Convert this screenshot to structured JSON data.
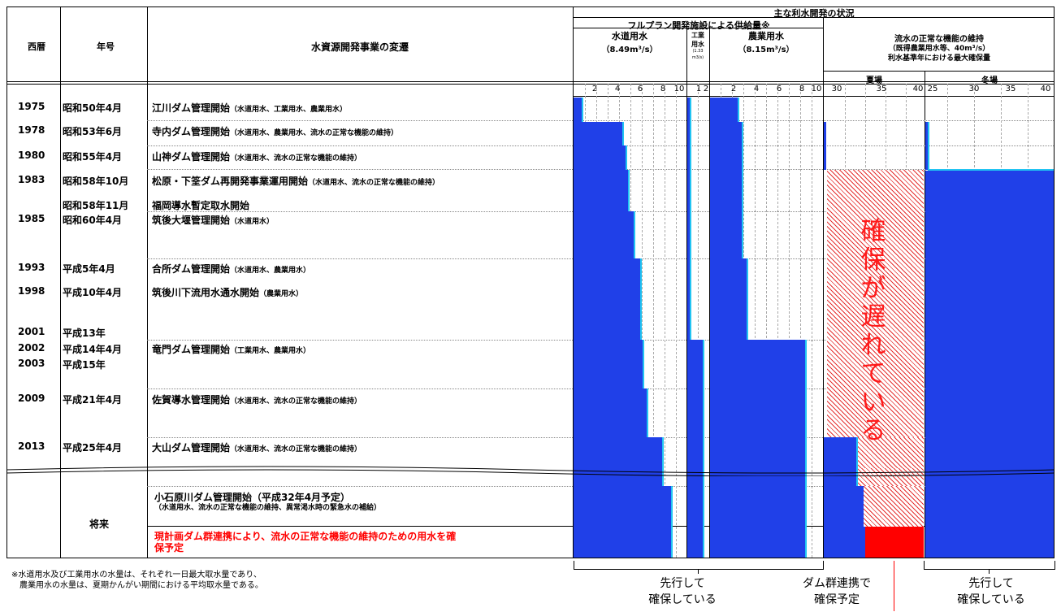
{
  "header": {
    "col_year": "西暦",
    "col_era": "年号",
    "col_history": "水資源開発事業の変遷",
    "main_title": "主な利水開発の状況",
    "fullplan_title": "フルプラン開発施設による供給量※",
    "water_supply": "水道用水",
    "water_supply_amount": "（8.49m³/s）",
    "industrial_1": "工業",
    "industrial_2": "用水",
    "industrial_amount_1": "(1.33",
    "industrial_amount_2": "m3/s)",
    "agri": "農業用水",
    "agri_amount": "（8.15m³/s）",
    "normal_flow_1": "流水の正常な機能の維持",
    "normal_flow_2": "（既得農業用水等、40m³/s）",
    "normal_flow_3": "利水基準年における最大確保量",
    "summer": "夏場",
    "winter": "冬場"
  },
  "ticks": {
    "water_supply": [
      "2",
      "4",
      "6",
      "8",
      "10"
    ],
    "industrial": [
      "1",
      "2"
    ],
    "agri": [
      "2",
      "4",
      "6",
      "8",
      "10"
    ],
    "summer": [
      "30",
      "35",
      "40"
    ],
    "winter": [
      "25",
      "30",
      "35",
      "40"
    ]
  },
  "rows": [
    {
      "year": "1975",
      "era": "昭和50年4月",
      "event": "江川ダム管理開始",
      "note": "（水道用水、工業用水、農業用水）"
    },
    {
      "year": "1978",
      "era": "昭和53年6月",
      "event": "寺内ダム管理開始",
      "note": "（水道用水、農業用水、流水の正常な機能の維持）"
    },
    {
      "year": "1980",
      "era": "昭和55年4月",
      "event": "山神ダム管理開始",
      "note": "（水道用水、流水の正常な機能の維持）"
    },
    {
      "year": "1983",
      "era": "昭和58年10月",
      "event": "松原・下筌ダム再開発事業運用開始",
      "note": "（水道用水、流水の正常な機能の維持）"
    },
    {
      "year": "",
      "era": "昭和58年11月",
      "event": "福岡導水暫定取水開始",
      "note": ""
    },
    {
      "year": "1985",
      "era": "昭和60年4月",
      "event": "筑後大堰管理開始",
      "note": "（水道用水）"
    },
    {
      "year": "1993",
      "era": "平成5年4月",
      "event": "合所ダム管理開始",
      "note": "（水道用水、農業用水）"
    },
    {
      "year": "1998",
      "era": "平成10年4月",
      "event": "筑後川下流用水通水開始",
      "note": "（農業用水）"
    },
    {
      "year": "2001",
      "era": "平成13年",
      "event": "",
      "note": ""
    },
    {
      "year": "2002",
      "era": "平成14年4月",
      "event": "竜門ダム管理開始",
      "note": "（工業用水、農業用水）"
    },
    {
      "year": "2003",
      "era": "平成15年",
      "event": "",
      "note": ""
    },
    {
      "year": "2009",
      "era": "平成21年4月",
      "event": "佐賀導水管理開始",
      "note": "（水道用水、流水の正常な機能の維持）"
    },
    {
      "year": "2013",
      "era": "平成25年4月",
      "event": "大山ダム管理開始",
      "note": "（水道用水、流水の正常な機能の維持）"
    }
  ],
  "future": {
    "era": "将来",
    "event1": "小石原川ダム管理開始（平成32年4月予定）",
    "event1_note": "（水道用水、流水の正常な機能の維持、異常渇水時の緊急水の補給）",
    "event2_line1": "現計画ダム群連携により、流水の正常な機能の維持のための用水を確",
    "event2_line2": "保予定"
  },
  "delay_text": [
    "確",
    "保",
    "が",
    "遅",
    "れ",
    "て",
    "い",
    "る"
  ],
  "footnote": [
    "※水道用水及び工業用水の水量は、それぞれ一日最大取水量であり、",
    "　農業用水の水量は、夏期かんがい期間における平均取水量である。"
  ],
  "bottom_labels": {
    "left": [
      "先行して",
      "確保している"
    ],
    "middle": [
      "ダム群連携で",
      "確保予定"
    ],
    "right": [
      "先行して",
      "確保している"
    ]
  },
  "colors": {
    "supply": "#2040e8",
    "edge": "#22c4f2",
    "delay": "#e53030",
    "planned": "#ff0000"
  }
}
